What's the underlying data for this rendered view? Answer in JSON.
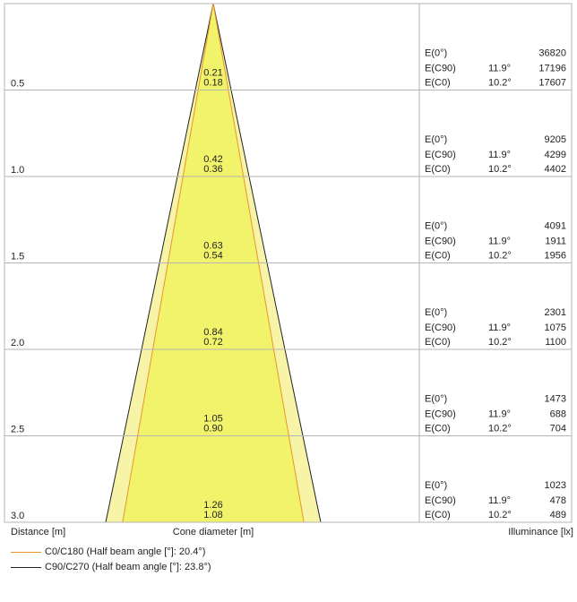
{
  "chart_data": {
    "type": "cone-diagram",
    "axis_labels": {
      "distance": "Distance [m]",
      "cone_diameter": "Cone diameter [m]",
      "illuminance": "Illuminance [lx]"
    },
    "colors": {
      "cone_fill": "#f1f46a",
      "outer_cone_fill": "#f7f4a8",
      "c0_line": "#e8942c",
      "c90_line": "#222222",
      "grid": "#b5b5b5"
    },
    "legend": [
      {
        "label": "C0/C180 (Half beam angle [°]: 20.4°)",
        "color": "#e8942c"
      },
      {
        "label": "C90/C270 (Half beam angle [°]: 23.8°)",
        "color": "#222222"
      }
    ],
    "half_beam_angles_deg": {
      "c0": 20.4,
      "c90": 23.8
    },
    "rows": [
      {
        "distance": "0.5",
        "diam_c90": "0.21",
        "diam_c0": "0.18",
        "e0_label": "E(0°)",
        "e0": "36820",
        "ec90_label": "E(C90)",
        "ec90_angle": "11.9°",
        "ec90": "17196",
        "ec0_label": "E(C0)",
        "ec0_angle": "10.2°",
        "ec0": "17607"
      },
      {
        "distance": "1.0",
        "diam_c90": "0.42",
        "diam_c0": "0.36",
        "e0_label": "E(0°)",
        "e0": "9205",
        "ec90_label": "E(C90)",
        "ec90_angle": "11.9°",
        "ec90": "4299",
        "ec0_label": "E(C0)",
        "ec0_angle": "10.2°",
        "ec0": "4402"
      },
      {
        "distance": "1.5",
        "diam_c90": "0.63",
        "diam_c0": "0.54",
        "e0_label": "E(0°)",
        "e0": "4091",
        "ec90_label": "E(C90)",
        "ec90_angle": "11.9°",
        "ec90": "1911",
        "ec0_label": "E(C0)",
        "ec0_angle": "10.2°",
        "ec0": "1956"
      },
      {
        "distance": "2.0",
        "diam_c90": "0.84",
        "diam_c0": "0.72",
        "e0_label": "E(0°)",
        "e0": "2301",
        "ec90_label": "E(C90)",
        "ec90_angle": "11.9°",
        "ec90": "1075",
        "ec0_label": "E(C0)",
        "ec0_angle": "10.2°",
        "ec0": "1100"
      },
      {
        "distance": "2.5",
        "diam_c90": "1.05",
        "diam_c0": "0.90",
        "e0_label": "E(0°)",
        "e0": "1473",
        "ec90_label": "E(C90)",
        "ec90_angle": "11.9°",
        "ec90": "688",
        "ec0_label": "E(C0)",
        "ec0_angle": "10.2°",
        "ec0": "704"
      },
      {
        "distance": "3.0",
        "diam_c90": "1.26",
        "diam_c0": "1.08",
        "e0_label": "E(0°)",
        "e0": "1023",
        "ec90_label": "E(C90)",
        "ec90_angle": "11.9°",
        "ec90": "478",
        "ec0_label": "E(C0)",
        "ec0_angle": "10.2°",
        "ec0": "489"
      }
    ]
  }
}
